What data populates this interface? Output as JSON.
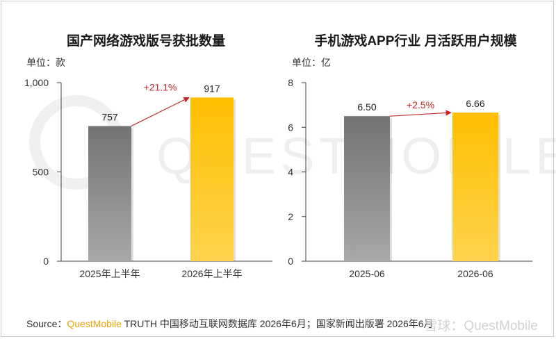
{
  "footer": {
    "source_label": "Source：",
    "brand": "QuestMobile",
    "source_text": " TRUTH 中国移动互联网数据库 2026年6月；国家新闻出版署 2026年6月",
    "watermark": "雪球：QuestMobile"
  },
  "background_watermark": "QUESTMOBILE",
  "colors": {
    "gray": "#8c8c8c",
    "gold": "#ffc000",
    "arrow": "#c0282b",
    "axis": "#404040"
  },
  "chart_data": [
    {
      "type": "bar",
      "title": "国产网络游戏版号获批数量",
      "unit_label": "单位：款",
      "categories": [
        "2025年上半年",
        "2026年上半年"
      ],
      "values": [
        757,
        917
      ],
      "value_labels": [
        "757",
        "917"
      ],
      "bar_colors": [
        "gray",
        "gold"
      ],
      "ylim": [
        0,
        1000
      ],
      "yticks": [
        0,
        500,
        1000
      ],
      "ytick_labels": [
        "0",
        "500",
        "1,000"
      ],
      "growth_label": "+21.1%",
      "grid": false
    },
    {
      "type": "bar",
      "title": "手机游戏APP行业 月活跃用户规模",
      "unit_label": "单位：亿",
      "categories": [
        "2025-06",
        "2026-06"
      ],
      "values": [
        6.5,
        6.66
      ],
      "value_labels": [
        "6.50",
        "6.66"
      ],
      "bar_colors": [
        "gray",
        "gold"
      ],
      "ylim": [
        0,
        8
      ],
      "yticks": [
        0,
        2,
        4,
        6,
        8
      ],
      "ytick_labels": [
        "0",
        "2",
        "4",
        "6",
        "8"
      ],
      "growth_label": "+2.5%",
      "grid": false
    }
  ]
}
